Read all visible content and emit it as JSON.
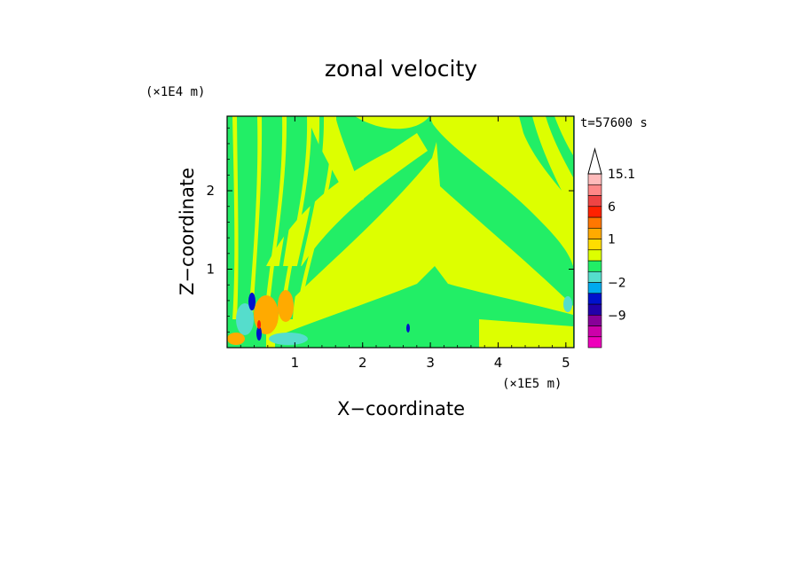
{
  "chart_data": {
    "type": "heatmap",
    "title": "zonal velocity",
    "xlabel": "X−coordinate",
    "ylabel": "Z−coordinate",
    "x_unit": "(×1E5 m)",
    "y_unit": "(×1E4 m)",
    "time_label": "t=57600 s",
    "xlim": [
      0,
      5.12
    ],
    "ylim": [
      0,
      2.95
    ],
    "x_ticks": [
      1,
      2,
      3,
      4,
      5
    ],
    "x_tick_labels": [
      "1",
      "2",
      "3",
      "4",
      "5"
    ],
    "y_ticks": [
      1,
      2
    ],
    "y_tick_labels": [
      "1",
      "2"
    ],
    "colorbar": {
      "levels": [
        {
          "value": -15,
          "color": "#ee00bb"
        },
        {
          "value": -12,
          "color": "#cc00aa"
        },
        {
          "value": -9,
          "color": "#880099"
        },
        {
          "value": -6,
          "color": "#2200aa"
        },
        {
          "value": -4,
          "color": "#0011cc"
        },
        {
          "value": -2,
          "color": "#00aaee"
        },
        {
          "value": -1,
          "color": "#55ddcc"
        },
        {
          "value": 0,
          "color": "#22ee66"
        },
        {
          "value": 0.5,
          "color": "#ddff00"
        },
        {
          "value": 1,
          "color": "#ffdd00"
        },
        {
          "value": 2,
          "color": "#ffaa00"
        },
        {
          "value": 4,
          "color": "#ff7700"
        },
        {
          "value": 6,
          "color": "#ff2200"
        },
        {
          "value": 9,
          "color": "#ee4444"
        },
        {
          "value": 12,
          "color": "#ff8888"
        },
        {
          "value": 15.1,
          "color": "#ffbbbb"
        }
      ],
      "labels": [
        {
          "value": 15.1,
          "text": "15.1"
        },
        {
          "value": 6,
          "text": "6"
        },
        {
          "value": 1,
          "text": "1"
        },
        {
          "value": -2,
          "text": "−2"
        },
        {
          "value": -9,
          "text": "−9"
        }
      ],
      "overflow_arrow": true
    },
    "field_description_values": {
      "background": 0,
      "broad_regions_value": 0.5
    }
  }
}
